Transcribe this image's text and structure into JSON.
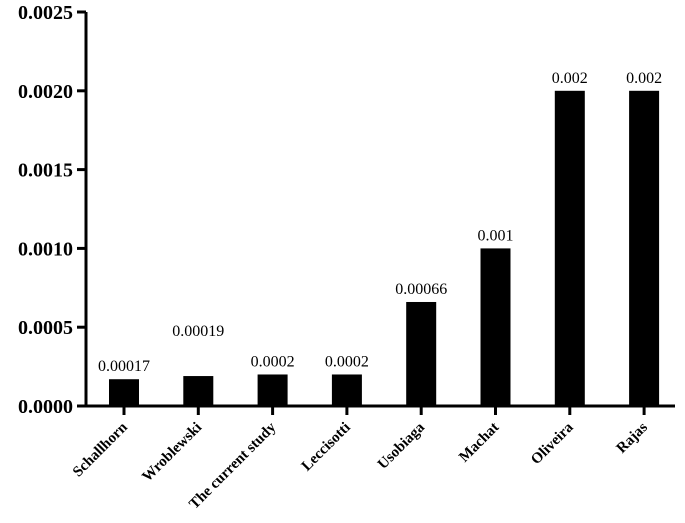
{
  "chart_data": {
    "type": "bar",
    "categories": [
      "Schallhorn",
      "Wroblewski",
      "The current study",
      "Leccisotti",
      "Usobiaga",
      "Machat",
      "Oliveira",
      "Rajas"
    ],
    "values": [
      0.00017,
      0.00019,
      0.0002,
      0.0002,
      0.00066,
      0.001,
      0.002,
      0.002
    ],
    "data_labels": [
      "0.00017",
      "0.00019",
      "0.0002",
      "0.0002",
      "0.00066",
      "0.001",
      "0.002",
      "0.002"
    ],
    "y_ticks": [
      "0.0000",
      "0.0005",
      "0.0010",
      "0.0015",
      "0.0020",
      "0.0025"
    ],
    "ylim": [
      0,
      0.0025
    ],
    "bar_color": "#000000",
    "grid": false,
    "legend": "none"
  }
}
